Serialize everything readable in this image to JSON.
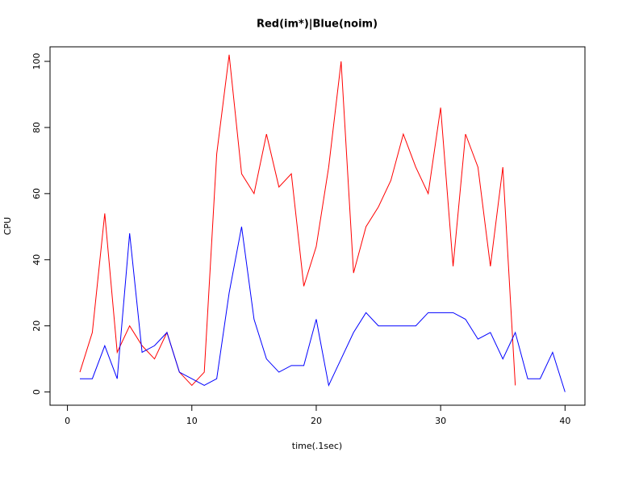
{
  "chart_data": {
    "type": "line",
    "title": "Red(im*)|Blue(noim)",
    "x_label": "time(.1sec)",
    "y_label": "CPU",
    "x": [
      1,
      2,
      3,
      4,
      5,
      6,
      7,
      8,
      9,
      10,
      11,
      12,
      13,
      14,
      15,
      16,
      17,
      18,
      19,
      20,
      21,
      22,
      23,
      24,
      25,
      26,
      27,
      28,
      29,
      30,
      31,
      32,
      33,
      34,
      35,
      36,
      37,
      38,
      39,
      40
    ],
    "series": [
      {
        "color": "#ff0000",
        "values": [
          6,
          18,
          54,
          12,
          20,
          14,
          10,
          18,
          6,
          2,
          6,
          72,
          102,
          66,
          60,
          78,
          62,
          66,
          32,
          44,
          68,
          100,
          36,
          50,
          56,
          64,
          78,
          68,
          60,
          86,
          38,
          78,
          68,
          38,
          68,
          2,
          null,
          null,
          null,
          null
        ]
      },
      {
        "color": "#0000ff",
        "values": [
          4,
          4,
          14,
          4,
          48,
          12,
          14,
          18,
          6,
          4,
          2,
          4,
          30,
          50,
          22,
          10,
          6,
          8,
          8,
          22,
          2,
          10,
          18,
          24,
          20,
          20,
          20,
          20,
          24,
          24,
          24,
          22,
          16,
          18,
          10,
          18,
          4,
          4,
          12,
          0
        ]
      }
    ],
    "xlim": [
      -1.4,
      41.6
    ],
    "ylim": [
      -4,
      104.4
    ],
    "xticks": [
      0,
      10,
      20,
      30,
      40
    ],
    "yticks": [
      0,
      20,
      40,
      60,
      80,
      100
    ]
  }
}
